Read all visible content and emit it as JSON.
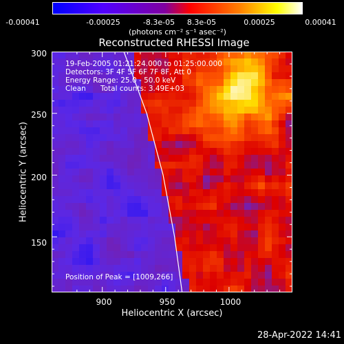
{
  "chart_data": {
    "type": "heatmap",
    "title": "Reconstructed RHESSI Image",
    "xlabel": "Heliocentric X (arcsec)",
    "ylabel": "Heliocentric Y (arcsec)",
    "xlim": [
      860,
      1050
    ],
    "ylim": [
      105,
      300
    ],
    "x_ticks": [
      900,
      950,
      1000
    ],
    "y_ticks": [
      150,
      200,
      250,
      300
    ],
    "colorbar": {
      "range": [
        -0.00041,
        0.00041
      ],
      "tick_labels": [
        "-0.00041",
        "-0.00025",
        "-8.3e-05",
        "8.3e-05",
        "0.00025",
        "0.00041"
      ],
      "unit_label": "(photons cm⁻² s⁻¹ asec⁻²)",
      "colors": [
        "#0000ff",
        "#8000ff",
        "#ff0000",
        "#ff8000",
        "#ffff00",
        "#ffffff"
      ]
    },
    "annotations": {
      "time_range": "19-Feb-2005 01:21:24.000 to 01:25:00.000",
      "detectors": "Detectors: 3F 4F 5F 6F 7F 8F, Att 0",
      "energy_range": "Energy Range: 25.0 - 50.0 keV",
      "method": "Clean",
      "total_counts": "Total counts: 3.49E+03",
      "peak": "Position of Peak = [1009,266]"
    },
    "peak_position": [
      1009,
      266
    ],
    "limb": [
      [
        917,
        300
      ],
      [
        935,
        250
      ],
      [
        948,
        200
      ],
      [
        957,
        150
      ],
      [
        963,
        105
      ]
    ]
  },
  "timestamp": "28-Apr-2022 14:41"
}
